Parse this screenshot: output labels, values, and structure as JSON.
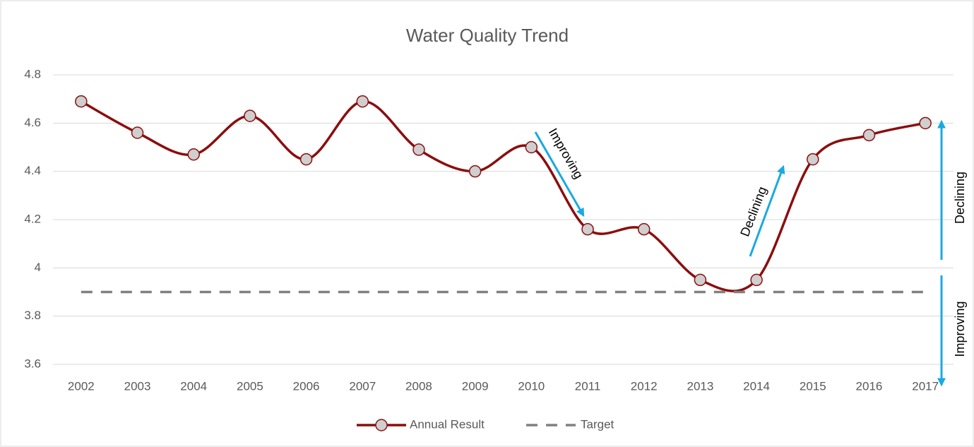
{
  "chart_data": {
    "type": "line",
    "title": "Water Quality Trend",
    "categories": [
      "2002",
      "2003",
      "2004",
      "2005",
      "2006",
      "2007",
      "2008",
      "2009",
      "2010",
      "2011",
      "2012",
      "2013",
      "2014",
      "2015",
      "2016",
      "2017"
    ],
    "series": [
      {
        "name": "Annual Result",
        "color": "#8b0e0e",
        "values": [
          4.69,
          4.56,
          4.47,
          4.63,
          4.45,
          4.69,
          4.49,
          4.4,
          4.5,
          4.16,
          4.16,
          3.95,
          3.95,
          4.45,
          4.55,
          4.6
        ]
      },
      {
        "name": "Target",
        "color": "#808080",
        "values": [
          3.9,
          3.9,
          3.9,
          3.9,
          3.9,
          3.9,
          3.9,
          3.9,
          3.9,
          3.9,
          3.9,
          3.9,
          3.9,
          3.9,
          3.9,
          3.9
        ]
      }
    ],
    "ylim": [
      3.6,
      4.8
    ],
    "yticks": [
      3.6,
      3.8,
      4,
      4.2,
      4.4,
      4.6,
      4.8
    ],
    "grid": true,
    "legend": "bottom",
    "annotations": [
      "Improving",
      "Declining",
      "Declining",
      "Improving"
    ]
  }
}
